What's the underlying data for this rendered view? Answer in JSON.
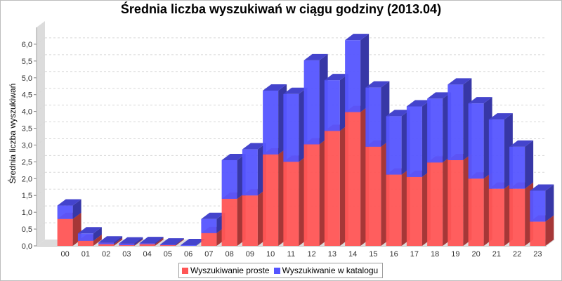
{
  "chart_data": {
    "type": "bar",
    "stacked": true,
    "style": "3d",
    "title": "Średnia liczba wyszukiwań w ciągu godziny (2013.04)",
    "xlabel": "",
    "ylabel": "Średnia liczba wyszukiwań",
    "ylim": [
      0,
      6.5
    ],
    "yticks": [
      "0,0",
      "0,5",
      "1,0",
      "1,5",
      "2,0",
      "2,5",
      "3,0",
      "3,5",
      "4,0",
      "4,5",
      "5,0",
      "5,5",
      "6,0"
    ],
    "grid": true,
    "legend_position": "bottom",
    "categories": [
      "00",
      "01",
      "02",
      "03",
      "04",
      "05",
      "06",
      "07",
      "08",
      "09",
      "10",
      "11",
      "12",
      "13",
      "14",
      "15",
      "16",
      "17",
      "18",
      "19",
      "20",
      "21",
      "22",
      "23"
    ],
    "series": [
      {
        "name": "Wyszukiwanie proste",
        "color": "#ff5555",
        "values": [
          0.8,
          0.15,
          0.05,
          0.02,
          0.05,
          0.02,
          0.0,
          0.38,
          1.4,
          1.5,
          2.72,
          2.5,
          3.02,
          3.42,
          3.98,
          2.95,
          2.12,
          2.05,
          2.48,
          2.55,
          2.0,
          1.7,
          1.7,
          0.72
        ]
      },
      {
        "name": "Wyszukiwanie w katalogu",
        "color": "#5555ff",
        "values": [
          0.4,
          0.22,
          0.05,
          0.05,
          0.03,
          0.02,
          0.02,
          0.42,
          1.15,
          1.37,
          1.9,
          2.02,
          2.5,
          1.51,
          2.14,
          1.76,
          1.74,
          2.1,
          1.9,
          2.25,
          2.24,
          2.06,
          1.25,
          0.92
        ]
      }
    ]
  }
}
